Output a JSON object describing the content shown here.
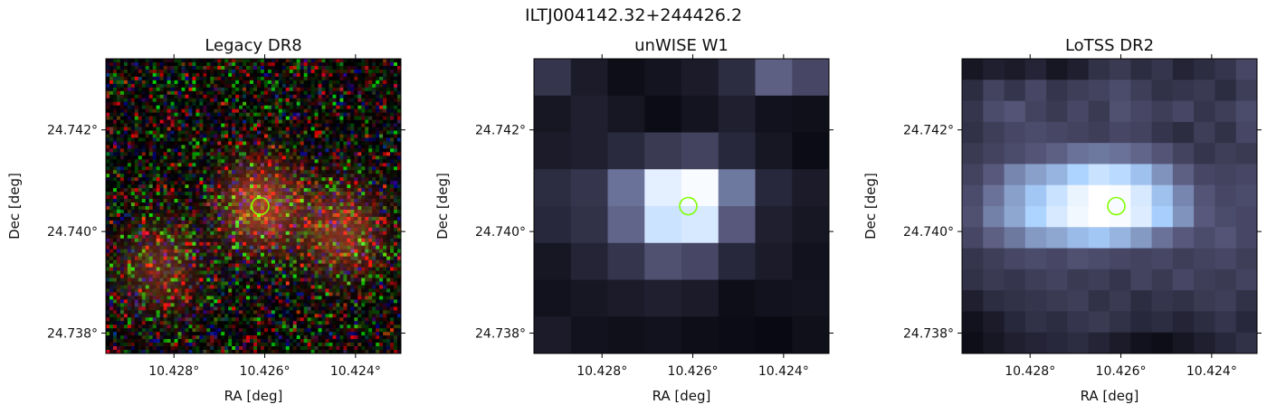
{
  "figure": {
    "suptitle": "ILTJ004142.32+244426.2"
  },
  "chart_data": [
    {
      "type": "heatmap",
      "title": "Legacy DR8",
      "xlabel": "RA [deg]",
      "ylabel": "Dec [deg]",
      "x_ticks": [
        10.428,
        10.426,
        10.424
      ],
      "y_ticks": [
        24.742,
        24.74,
        24.738
      ],
      "x_tick_labels": [
        "10.428°",
        "10.426°",
        "10.424°"
      ],
      "y_tick_labels": [
        "24.742°",
        "24.740°",
        "24.738°"
      ],
      "xlim": [
        10.4295,
        10.423
      ],
      "ylim": [
        24.7376,
        24.7434
      ],
      "colormap": "rgb",
      "marker": {
        "shape": "circle",
        "ra": 10.4261,
        "dec": 24.7405,
        "color": "#7fff00"
      },
      "sources": [
        {
          "ra": 10.4261,
          "dec": 24.7405,
          "strength": 1.0
        },
        {
          "ra": 10.4243,
          "dec": 24.74,
          "strength": 0.8
        },
        {
          "ra": 10.4283,
          "dec": 24.7393,
          "strength": 0.6
        }
      ]
    },
    {
      "type": "heatmap",
      "title": "unWISE W1",
      "xlabel": "RA [deg]",
      "ylabel": "Dec [deg]",
      "x_ticks": [
        10.428,
        10.426,
        10.424
      ],
      "y_ticks": [
        24.742,
        24.74,
        24.738
      ],
      "x_tick_labels": [
        "10.428°",
        "10.426°",
        "10.424°"
      ],
      "y_tick_labels": [
        "24.742°",
        "24.740°",
        "24.738°"
      ],
      "xlim": [
        10.4295,
        10.423
      ],
      "ylim": [
        24.7376,
        24.7434
      ],
      "colormap": "bone",
      "marker": {
        "shape": "circle",
        "ra": 10.4261,
        "dec": 24.7405,
        "color": "#7fff00"
      },
      "pixel_grid": {
        "cols": 8,
        "rows": 8,
        "values": [
          [
            0.22,
            0.1,
            0.04,
            0.07,
            0.1,
            0.18,
            0.4,
            0.3
          ],
          [
            0.08,
            0.12,
            0.08,
            0.03,
            0.07,
            0.12,
            0.06,
            0.05
          ],
          [
            0.1,
            0.12,
            0.17,
            0.24,
            0.28,
            0.16,
            0.08,
            0.03
          ],
          [
            0.18,
            0.22,
            0.46,
            0.92,
            0.98,
            0.48,
            0.16,
            0.1
          ],
          [
            0.16,
            0.2,
            0.42,
            0.85,
            0.88,
            0.38,
            0.12,
            0.08
          ],
          [
            0.08,
            0.14,
            0.22,
            0.34,
            0.3,
            0.16,
            0.1,
            0.06
          ],
          [
            0.06,
            0.08,
            0.1,
            0.12,
            0.1,
            0.04,
            0.06,
            0.07
          ],
          [
            0.1,
            0.06,
            0.05,
            0.06,
            0.04,
            0.03,
            0.02,
            0.05
          ]
        ]
      }
    },
    {
      "type": "heatmap",
      "title": "LoTSS DR2",
      "xlabel": "RA [deg]",
      "ylabel": "Dec [deg]",
      "x_ticks": [
        10.428,
        10.426,
        10.424
      ],
      "y_ticks": [
        24.742,
        24.74,
        24.738
      ],
      "x_tick_labels": [
        "10.428°",
        "10.426°",
        "10.424°"
      ],
      "y_tick_labels": [
        "24.742°",
        "24.740°",
        "24.738°"
      ],
      "xlim": [
        10.4295,
        10.423
      ],
      "ylim": [
        24.7376,
        24.7434
      ],
      "colormap": "bone",
      "marker": {
        "shape": "circle",
        "ra": 10.4261,
        "dec": 24.7405,
        "color": "#7fff00"
      },
      "pixel_grid": {
        "cols": 14,
        "rows": 14,
        "values": [
          [
            0.08,
            0.12,
            0.1,
            0.14,
            0.08,
            0.12,
            0.2,
            0.24,
            0.18,
            0.22,
            0.14,
            0.18,
            0.22,
            0.3
          ],
          [
            0.18,
            0.28,
            0.22,
            0.3,
            0.22,
            0.26,
            0.28,
            0.32,
            0.26,
            0.2,
            0.22,
            0.24,
            0.18,
            0.26
          ],
          [
            0.22,
            0.32,
            0.36,
            0.28,
            0.24,
            0.3,
            0.24,
            0.34,
            0.3,
            0.26,
            0.3,
            0.22,
            0.26,
            0.32
          ],
          [
            0.2,
            0.26,
            0.3,
            0.32,
            0.3,
            0.28,
            0.26,
            0.3,
            0.28,
            0.22,
            0.18,
            0.26,
            0.2,
            0.3
          ],
          [
            0.24,
            0.28,
            0.32,
            0.36,
            0.4,
            0.46,
            0.48,
            0.46,
            0.42,
            0.36,
            0.28,
            0.22,
            0.26,
            0.24
          ],
          [
            0.28,
            0.38,
            0.52,
            0.6,
            0.66,
            0.76,
            0.84,
            0.8,
            0.7,
            0.56,
            0.4,
            0.3,
            0.28,
            0.3
          ],
          [
            0.32,
            0.46,
            0.6,
            0.72,
            0.84,
            0.94,
            1.0,
            0.98,
            0.88,
            0.7,
            0.52,
            0.36,
            0.3,
            0.32
          ],
          [
            0.34,
            0.5,
            0.62,
            0.76,
            0.88,
            0.96,
            1.0,
            0.98,
            0.9,
            0.74,
            0.56,
            0.38,
            0.32,
            0.3
          ],
          [
            0.3,
            0.4,
            0.48,
            0.58,
            0.62,
            0.68,
            0.72,
            0.66,
            0.58,
            0.46,
            0.38,
            0.32,
            0.36,
            0.3
          ],
          [
            0.22,
            0.26,
            0.3,
            0.32,
            0.3,
            0.34,
            0.32,
            0.3,
            0.28,
            0.3,
            0.26,
            0.28,
            0.3,
            0.26
          ],
          [
            0.2,
            0.24,
            0.22,
            0.26,
            0.28,
            0.24,
            0.26,
            0.22,
            0.28,
            0.24,
            0.3,
            0.26,
            0.24,
            0.28
          ],
          [
            0.12,
            0.18,
            0.2,
            0.22,
            0.24,
            0.26,
            0.2,
            0.24,
            0.18,
            0.22,
            0.2,
            0.24,
            0.26,
            0.2
          ],
          [
            0.06,
            0.1,
            0.16,
            0.2,
            0.18,
            0.22,
            0.24,
            0.2,
            0.16,
            0.18,
            0.14,
            0.18,
            0.22,
            0.16
          ],
          [
            0.04,
            0.08,
            0.12,
            0.14,
            0.16,
            0.18,
            0.14,
            0.1,
            0.06,
            0.04,
            0.08,
            0.12,
            0.16,
            0.2
          ]
        ]
      }
    }
  ]
}
